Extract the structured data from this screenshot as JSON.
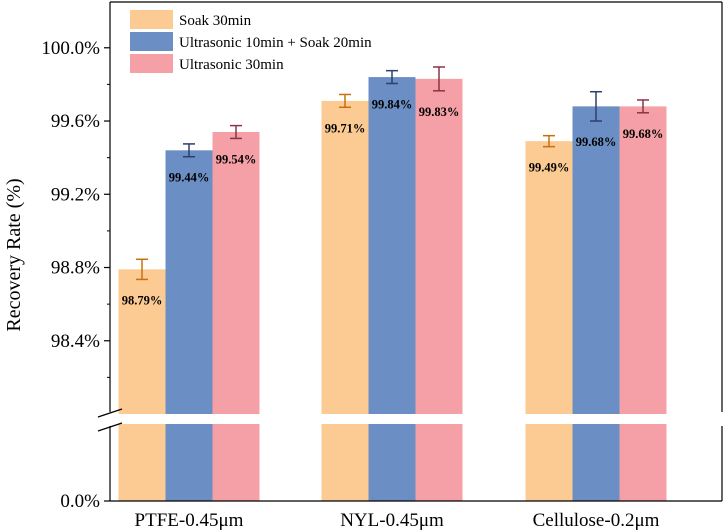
{
  "chart_data": {
    "type": "bar",
    "title": "",
    "xlabel": "",
    "ylabel": "Recovery Rate (%)",
    "categories": [
      "PTFE-0.45μm",
      "NYL-0.45μm",
      "Cellulose-0.2μm"
    ],
    "series": [
      {
        "name": "Soak 30min",
        "color": "#FCCB93",
        "errcolor": "#C87010",
        "values": [
          98.79,
          99.71,
          99.49
        ],
        "errors": [
          0.055,
          0.035,
          0.03
        ],
        "labels": [
          "98.79%",
          "99.71%",
          "99.49%"
        ]
      },
      {
        "name": "Ultrasonic 10min + Soak 20min",
        "color": "#6B8FC4",
        "errcolor": "#2D3F6E",
        "values": [
          99.44,
          99.84,
          99.68
        ],
        "errors": [
          0.035,
          0.035,
          0.08
        ],
        "labels": [
          "99.44%",
          "99.84%",
          "99.68%"
        ]
      },
      {
        "name": "Ultrasonic 30min",
        "color": "#F4A0A6",
        "errcolor": "#8E3246",
        "values": [
          99.54,
          99.83,
          99.68
        ],
        "errors": [
          0.035,
          0.065,
          0.035
        ],
        "labels": [
          "99.54%",
          "99.83%",
          "99.68%"
        ]
      }
    ],
    "y_axis": {
      "broken": true,
      "lower_range": [
        0.0,
        0.3
      ],
      "upper_range": [
        98.0,
        100.25
      ],
      "ticks": [
        {
          "value": 0.0,
          "label": "0.0%"
        },
        {
          "value": 98.4,
          "label": "98.4%"
        },
        {
          "value": 98.8,
          "label": "98.8%"
        },
        {
          "value": 99.2,
          "label": "99.2%"
        },
        {
          "value": 99.6,
          "label": "99.6%"
        },
        {
          "value": 100.0,
          "label": "100.0%"
        }
      ]
    },
    "legend": {
      "position": "top-left"
    },
    "grid": false
  }
}
